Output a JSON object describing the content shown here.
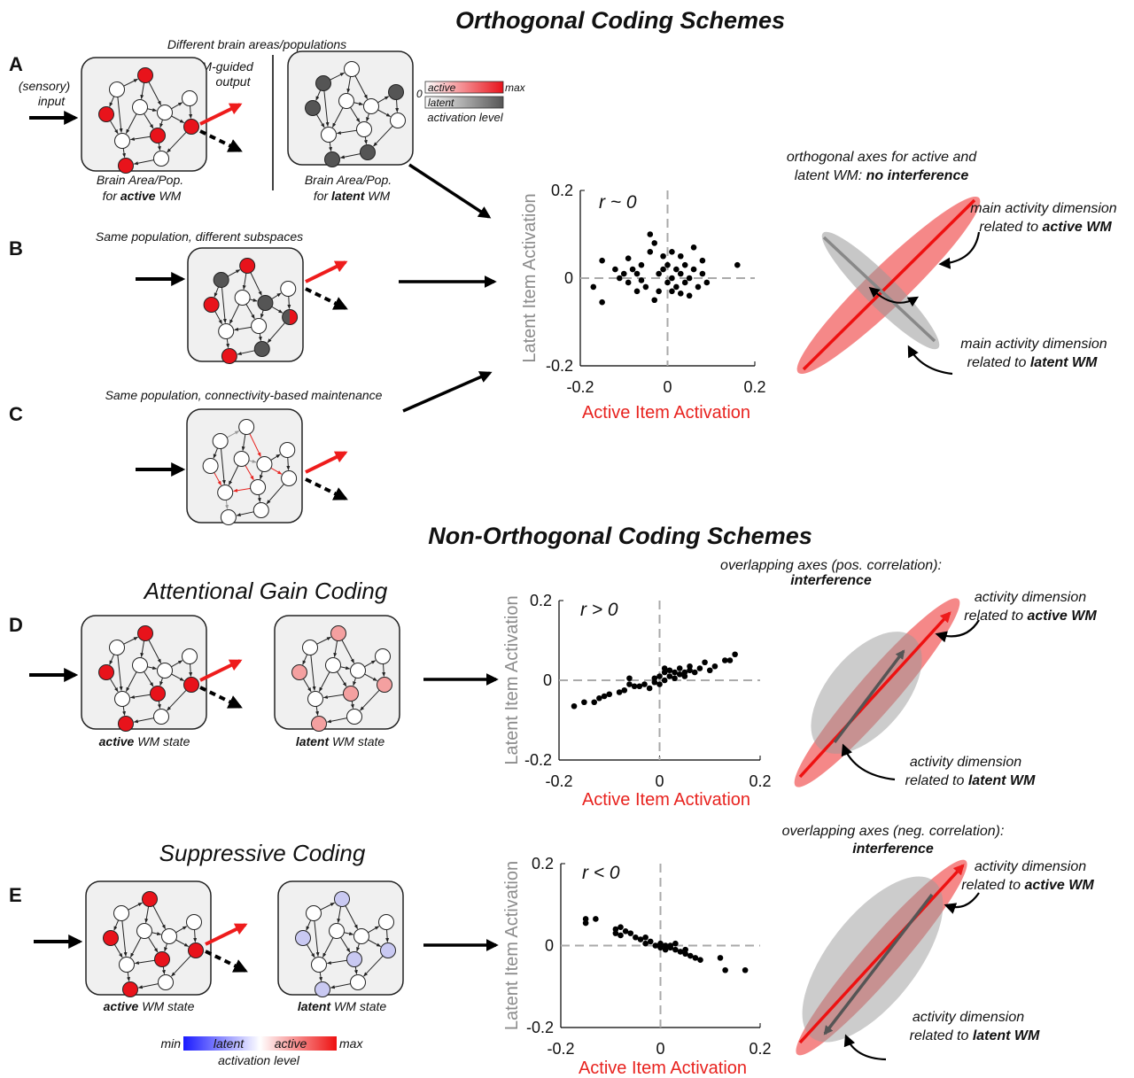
{
  "titles": {
    "orthogonal": "Orthogonal Coding Schemes",
    "non_orthogonal": "Non-Orthogonal Coding Schemes"
  },
  "panels": {
    "A": {
      "letter": "A",
      "header": "Different brain areas/populations",
      "input": [
        "(sensory)",
        "input"
      ],
      "output": [
        "WM-guided",
        "output"
      ],
      "active_caption": [
        "Brain Area/Pop.",
        "for",
        "active",
        "WM"
      ],
      "latent_caption": [
        "Brain Area/Pop.",
        "for",
        "latent",
        "WM"
      ]
    },
    "B": {
      "letter": "B",
      "header": "Same population, different subspaces"
    },
    "C": {
      "letter": "C",
      "header": "Same population, connectivity-based maintenance"
    },
    "D": {
      "letter": "D",
      "title": "Attentional Gain Coding",
      "active_caption": [
        "active",
        "WM state"
      ],
      "latent_caption": [
        "latent",
        "WM state"
      ]
    },
    "E": {
      "letter": "E",
      "title": "Suppressive Coding",
      "active_caption": [
        "active",
        "WM state"
      ],
      "latent_caption": [
        "latent",
        "WM state"
      ]
    }
  },
  "legend_top": {
    "active": "active",
    "latent": "latent",
    "min": "0",
    "max": "max",
    "caption": "activation level"
  },
  "legend_bottom": {
    "min": "min",
    "latent": "latent",
    "active": "active",
    "max": "max",
    "caption": "activation level"
  },
  "schematics": [
    {
      "heading": [
        "orthogonal axes for active and",
        "latent WM:",
        "no interference"
      ],
      "active_label": [
        "main activity dimension",
        "related to",
        "active WM"
      ],
      "latent_label": [
        "main activity dimension",
        "related to",
        "latent WM"
      ]
    },
    {
      "heading": [
        "overlapping axes (pos. correlation):",
        "interference"
      ],
      "active_label": [
        "activity dimension",
        "related to",
        "active WM"
      ],
      "latent_label": [
        "activity dimension",
        "related to",
        "latent WM"
      ]
    },
    {
      "heading": [
        "overlapping axes (neg. correlation):",
        "interference"
      ],
      "active_label": [
        "activity dimension",
        "related to",
        "active WM"
      ],
      "latent_label": [
        "activity dimension",
        "related to",
        "latent WM"
      ]
    }
  ],
  "chart_data": [
    {
      "type": "scatter",
      "annotation": "r ~ 0",
      "xlabel": "Active Item Activation",
      "ylabel": "Latent Item Activation",
      "xlabel_color": "#e8231f",
      "ylabel_color": "#8c8c8c",
      "color": "#000000",
      "xlim": [
        -0.2,
        0.2
      ],
      "ylim": [
        -0.2,
        0.2
      ],
      "xticks": [
        -0.2,
        0,
        0.2
      ],
      "yticks": [
        -0.2,
        0,
        0.2
      ],
      "x": [
        -0.17,
        -0.15,
        -0.15,
        -0.12,
        -0.11,
        -0.1,
        -0.09,
        -0.09,
        -0.08,
        -0.07,
        -0.07,
        -0.06,
        -0.05,
        -0.04,
        -0.04,
        -0.03,
        -0.03,
        -0.02,
        -0.02,
        -0.01,
        -0.01,
        0,
        0,
        0.01,
        0.01,
        0.01,
        0.02,
        0.02,
        0.03,
        0.03,
        0.04,
        0.04,
        0.05,
        0.05,
        0.06,
        0.06,
        0.07,
        0.08,
        0.08,
        0.09,
        0.16,
        -0.06,
        0.03
      ],
      "y": [
        -0.02,
        0.04,
        -0.055,
        0.02,
        0,
        0.01,
        0.045,
        -0.01,
        0.02,
        -0.03,
        0.01,
        0.03,
        -0.02,
        0.1,
        0.06,
        0.08,
        -0.05,
        0.01,
        -0.03,
        0.05,
        0.02,
        0.03,
        -0.01,
        0.06,
        0,
        -0.03,
        0.02,
        -0.02,
        0.05,
        0.01,
        -0.01,
        0.03,
        0,
        -0.04,
        0.07,
        0.02,
        -0.02,
        0.04,
        0.01,
        -0.01,
        0.03,
        -0.005,
        -0.035
      ]
    },
    {
      "type": "scatter",
      "annotation": "r > 0",
      "xlabel": "Active Item Activation",
      "ylabel": "Latent Item Activation",
      "xlabel_color": "#e8231f",
      "ylabel_color": "#8c8c8c",
      "color": "#000000",
      "xlim": [
        -0.2,
        0.2
      ],
      "ylim": [
        -0.2,
        0.2
      ],
      "xticks": [
        -0.2,
        0,
        0.2
      ],
      "yticks": [
        -0.2,
        0,
        0.2
      ],
      "x": [
        -0.17,
        -0.15,
        -0.13,
        -0.12,
        -0.11,
        -0.1,
        -0.08,
        -0.07,
        -0.06,
        -0.06,
        -0.05,
        -0.04,
        -0.03,
        -0.02,
        -0.01,
        -0.01,
        0,
        0,
        0.01,
        0.01,
        0.01,
        0.02,
        0.02,
        0.03,
        0.03,
        0.04,
        0.04,
        0.05,
        0.05,
        0.06,
        0.06,
        0.07,
        0.08,
        0.09,
        0.1,
        0.11,
        0.13,
        0.14,
        0.15
      ],
      "y": [
        -0.065,
        -0.055,
        -0.055,
        -0.045,
        -0.04,
        -0.035,
        -0.03,
        -0.025,
        -0.01,
        0.005,
        -0.015,
        -0.015,
        -0.01,
        -0.02,
        -0.005,
        0.005,
        -0.01,
        0.01,
        0,
        0.02,
        0.03,
        0.01,
        0.025,
        0.005,
        0.02,
        0.015,
        0.03,
        0.02,
        0.01,
        0.025,
        0.035,
        0.02,
        0.03,
        0.045,
        0.025,
        0.035,
        0.05,
        0.05,
        0.065
      ]
    },
    {
      "type": "scatter",
      "annotation": "r < 0",
      "xlabel": "Active Item Activation",
      "ylabel": "Latent Item Activation",
      "xlabel_color": "#e8231f",
      "ylabel_color": "#8c8c8c",
      "color": "#000000",
      "xlim": [
        -0.2,
        0.2
      ],
      "ylim": [
        -0.2,
        0.2
      ],
      "xticks": [
        -0.2,
        0,
        0.2
      ],
      "yticks": [
        -0.2,
        0,
        0.2
      ],
      "x": [
        -0.15,
        -0.15,
        -0.13,
        -0.09,
        -0.09,
        -0.08,
        -0.08,
        -0.07,
        -0.06,
        -0.05,
        -0.04,
        -0.03,
        -0.03,
        -0.02,
        -0.01,
        0,
        0,
        0.01,
        0.01,
        0.02,
        0.02,
        0.03,
        0.03,
        0.04,
        0.05,
        0.05,
        0.06,
        0.07,
        0.08,
        0.12,
        0.13,
        0.17
      ],
      "y": [
        0.065,
        0.055,
        0.065,
        0.04,
        0.03,
        0.045,
        0.025,
        0.035,
        0.03,
        0.02,
        0.015,
        0.02,
        0.005,
        0.01,
        0,
        0.005,
        -0.005,
        0,
        -0.01,
        0,
        -0.005,
        -0.01,
        0.005,
        -0.015,
        -0.01,
        -0.02,
        -0.025,
        -0.03,
        -0.035,
        -0.03,
        -0.06,
        -0.06
      ]
    }
  ]
}
